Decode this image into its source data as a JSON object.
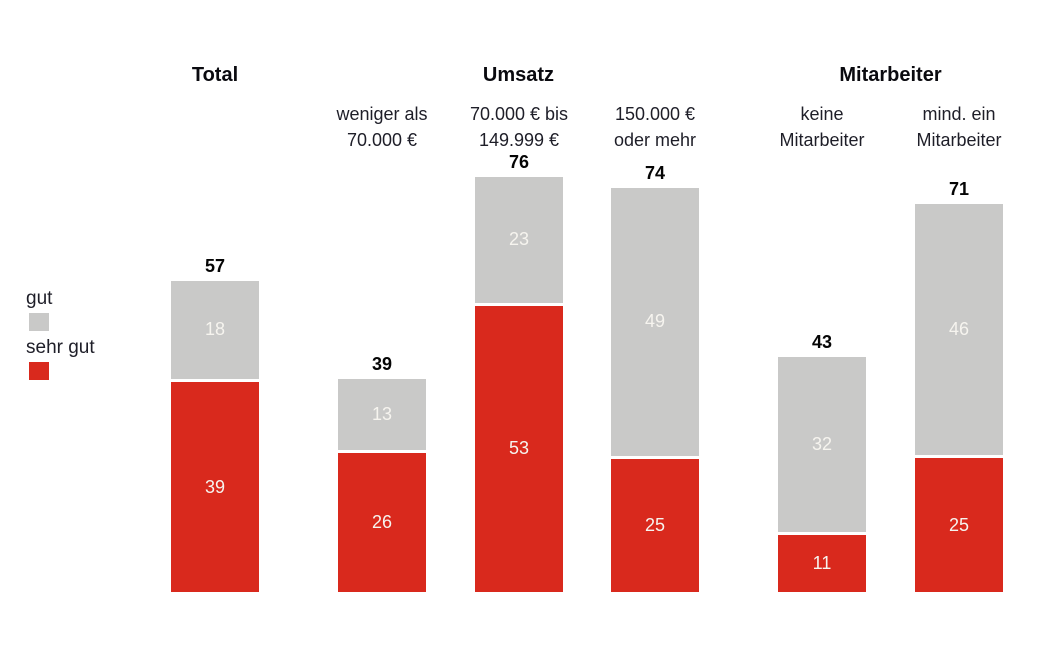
{
  "chart_data": {
    "type": "bar",
    "subtype": "stacked",
    "title": "",
    "grid": false,
    "legend_position": "left",
    "ylim": [
      0,
      80
    ],
    "group_headers": [
      {
        "label": "Total",
        "bars": [
          0,
          0
        ]
      },
      {
        "label": "Umsatz",
        "bars": [
          1,
          3
        ]
      },
      {
        "label": "Mitarbeiter",
        "bars": [
          4,
          5
        ]
      }
    ],
    "categories": [
      {
        "id": "total",
        "lines": []
      },
      {
        "id": "weniger-als-70000",
        "lines": [
          "weniger als",
          "70.000 €"
        ]
      },
      {
        "id": "70000-bis-149999",
        "lines": [
          "70.000 € bis",
          "149.999 €"
        ]
      },
      {
        "id": "150000-oder-mehr",
        "lines": [
          "150.000 €",
          "oder mehr"
        ]
      },
      {
        "id": "keine-mitarbeiter",
        "lines": [
          "keine",
          "Mitarbeiter"
        ]
      },
      {
        "id": "mind-ein-mitarbeiter",
        "lines": [
          "mind. ein",
          "Mitarbeiter"
        ]
      }
    ],
    "series": [
      {
        "name": "gut",
        "color": "#c9c9c8",
        "text_color": "#f6f4ef",
        "values": [
          18,
          13,
          23,
          49,
          32,
          46
        ]
      },
      {
        "name": "sehr gut",
        "color": "#d9291d",
        "text_color": "#f6f4ef",
        "values": [
          39,
          26,
          53,
          25,
          11,
          25
        ]
      }
    ],
    "totals": [
      57,
      39,
      76,
      74,
      43,
      71
    ]
  }
}
